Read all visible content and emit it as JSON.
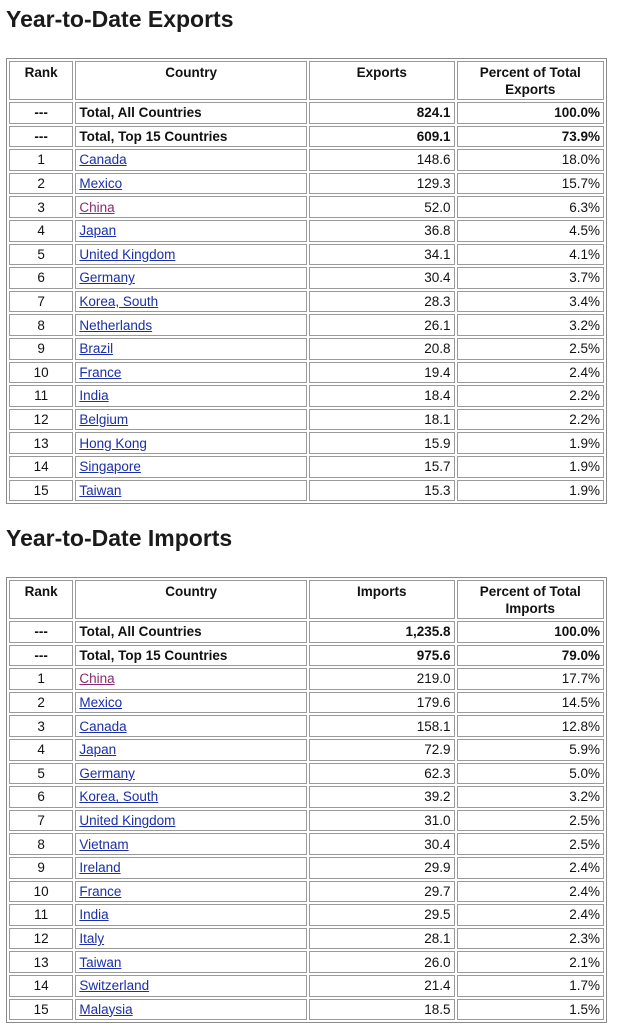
{
  "exports": {
    "title": "Year-to-Date Exports",
    "headers": [
      "Rank",
      "Country",
      "Exports",
      "Percent of Total Exports"
    ],
    "totals": [
      {
        "rank": "---",
        "country": "Total, All Countries",
        "value": "824.1",
        "pct": "100.0%"
      },
      {
        "rank": "---",
        "country": "Total, Top 15 Countries",
        "value": "609.1",
        "pct": "73.9%"
      }
    ],
    "rows": [
      {
        "rank": "1",
        "country": "Canada",
        "value": "148.6",
        "pct": "18.0%"
      },
      {
        "rank": "2",
        "country": "Mexico",
        "value": "129.3",
        "pct": "15.7%"
      },
      {
        "rank": "3",
        "country": "China",
        "value": "52.0",
        "pct": "6.3%",
        "visited": true
      },
      {
        "rank": "4",
        "country": "Japan",
        "value": "36.8",
        "pct": "4.5%"
      },
      {
        "rank": "5",
        "country": "United Kingdom",
        "value": "34.1",
        "pct": "4.1%"
      },
      {
        "rank": "6",
        "country": "Germany",
        "value": "30.4",
        "pct": "3.7%"
      },
      {
        "rank": "7",
        "country": "Korea, South",
        "value": "28.3",
        "pct": "3.4%"
      },
      {
        "rank": "8",
        "country": "Netherlands",
        "value": "26.1",
        "pct": "3.2%"
      },
      {
        "rank": "9",
        "country": "Brazil",
        "value": "20.8",
        "pct": "2.5%"
      },
      {
        "rank": "10",
        "country": "France",
        "value": "19.4",
        "pct": "2.4%"
      },
      {
        "rank": "11",
        "country": "India",
        "value": "18.4",
        "pct": "2.2%"
      },
      {
        "rank": "12",
        "country": "Belgium",
        "value": "18.1",
        "pct": "2.2%"
      },
      {
        "rank": "13",
        "country": "Hong Kong",
        "value": "15.9",
        "pct": "1.9%"
      },
      {
        "rank": "14",
        "country": "Singapore",
        "value": "15.7",
        "pct": "1.9%"
      },
      {
        "rank": "15",
        "country": "Taiwan",
        "value": "15.3",
        "pct": "1.9%"
      }
    ]
  },
  "imports": {
    "title": "Year-to-Date Imports",
    "headers": [
      "Rank",
      "Country",
      "Imports",
      "Percent of Total Imports"
    ],
    "totals": [
      {
        "rank": "---",
        "country": "Total, All Countries",
        "value": "1,235.8",
        "pct": "100.0%"
      },
      {
        "rank": "---",
        "country": "Total, Top 15 Countries",
        "value": "975.6",
        "pct": "79.0%"
      }
    ],
    "rows": [
      {
        "rank": "1",
        "country": "China",
        "value": "219.0",
        "pct": "17.7%",
        "visited": true
      },
      {
        "rank": "2",
        "country": "Mexico",
        "value": "179.6",
        "pct": "14.5%"
      },
      {
        "rank": "3",
        "country": "Canada",
        "value": "158.1",
        "pct": "12.8%"
      },
      {
        "rank": "4",
        "country": "Japan",
        "value": "72.9",
        "pct": "5.9%"
      },
      {
        "rank": "5",
        "country": "Germany",
        "value": "62.3",
        "pct": "5.0%"
      },
      {
        "rank": "6",
        "country": "Korea, South",
        "value": "39.2",
        "pct": "3.2%"
      },
      {
        "rank": "7",
        "country": "United Kingdom",
        "value": "31.0",
        "pct": "2.5%"
      },
      {
        "rank": "8",
        "country": "Vietnam",
        "value": "30.4",
        "pct": "2.5%"
      },
      {
        "rank": "9",
        "country": "Ireland",
        "value": "29.9",
        "pct": "2.4%"
      },
      {
        "rank": "10",
        "country": "France",
        "value": "29.7",
        "pct": "2.4%"
      },
      {
        "rank": "11",
        "country": "India",
        "value": "29.5",
        "pct": "2.4%"
      },
      {
        "rank": "12",
        "country": "Italy",
        "value": "28.1",
        "pct": "2.3%"
      },
      {
        "rank": "13",
        "country": "Taiwan",
        "value": "26.0",
        "pct": "2.1%"
      },
      {
        "rank": "14",
        "country": "Switzerland",
        "value": "21.4",
        "pct": "1.7%"
      },
      {
        "rank": "15",
        "country": "Malaysia",
        "value": "18.5",
        "pct": "1.5%"
      }
    ]
  },
  "colors": {
    "link": "#1a2fa8",
    "visited_link": "#8b2a6e",
    "cell_border": "#9a9a9a"
  }
}
